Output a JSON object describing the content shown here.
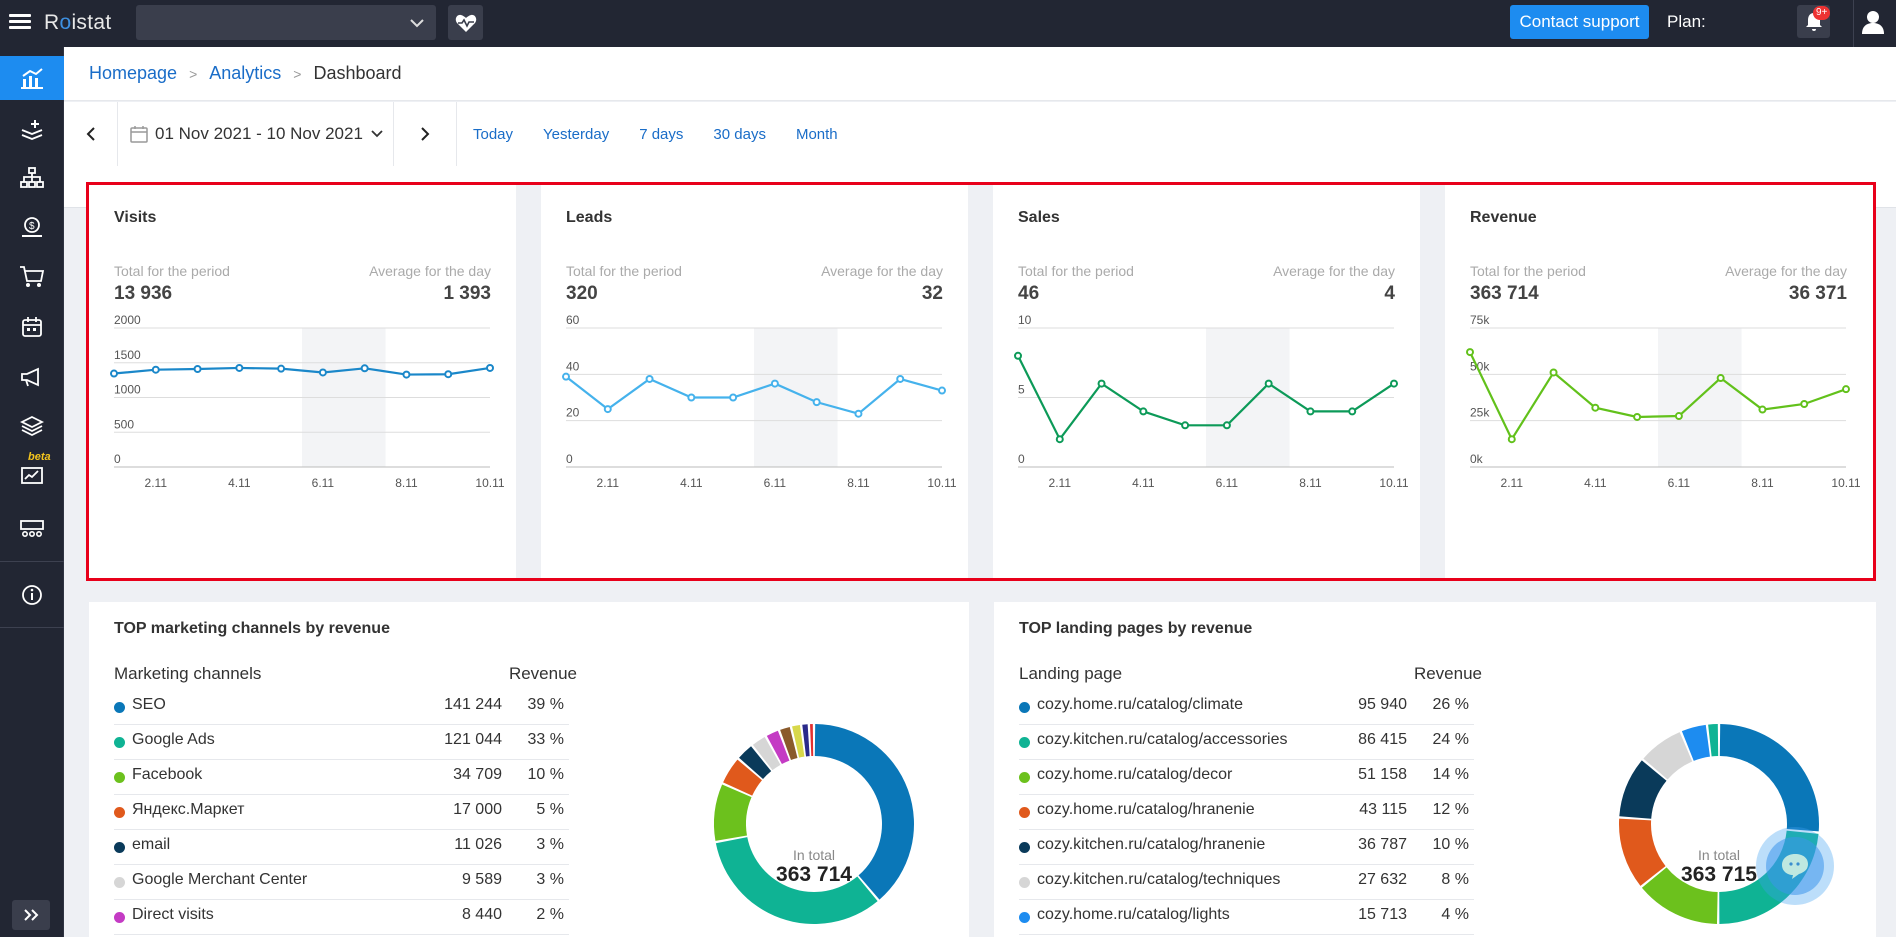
{
  "app": {
    "brand_prefix": "R",
    "brand_o": "o",
    "brand_suffix": "istat"
  },
  "topbar": {
    "project_select_value": "",
    "support_button": "Contact support",
    "plan_label": "Plan:",
    "notifications_badge": "9+"
  },
  "breadcrumbs": [
    "Homepage",
    "Analytics",
    "Dashboard"
  ],
  "datebar": {
    "range": "01 Nov 2021 - 10 Nov 2021",
    "presets": [
      "Today",
      "Yesterday",
      "7 days",
      "30 days",
      "Month"
    ]
  },
  "kpis": [
    {
      "title": "Visits",
      "total_label": "Total for the period",
      "avg_label": "Average for the day",
      "total": "13 936",
      "avg": "1 393",
      "color": "#1a87c9"
    },
    {
      "title": "Leads",
      "total_label": "Total for the period",
      "avg_label": "Average for the day",
      "total": "320",
      "avg": "32",
      "color": "#45b2ec"
    },
    {
      "title": "Sales",
      "total_label": "Total for the period",
      "avg_label": "Average for the day",
      "total": "46",
      "avg": "4",
      "color": "#0c9a58"
    },
    {
      "title": "Revenue",
      "total_label": "Total for the period",
      "avg_label": "Average for the day",
      "total": "363 714",
      "avg": "36 371",
      "color": "#62c11b"
    }
  ],
  "chart_data": [
    {
      "type": "line",
      "title": "Visits",
      "x": [
        "1.11",
        "2.11",
        "3.11",
        "4.11",
        "5.11",
        "6.11",
        "7.11",
        "8.11",
        "9.11",
        "10.11"
      ],
      "xticks": [
        "2.11",
        "4.11",
        "6.11",
        "8.11",
        "10.11"
      ],
      "yticks": [
        "0",
        "500",
        "1000",
        "1500",
        "2000"
      ],
      "ylim": [
        0,
        2000
      ],
      "values": [
        1345,
        1400,
        1410,
        1425,
        1415,
        1360,
        1420,
        1330,
        1335,
        1425
      ],
      "shaded": [
        "6.11",
        "7.11"
      ]
    },
    {
      "type": "line",
      "title": "Leads",
      "x": [
        "1.11",
        "2.11",
        "3.11",
        "4.11",
        "5.11",
        "6.11",
        "7.11",
        "8.11",
        "9.11",
        "10.11"
      ],
      "xticks": [
        "2.11",
        "4.11",
        "6.11",
        "8.11",
        "10.11"
      ],
      "yticks": [
        "0",
        "20",
        "40",
        "60"
      ],
      "ylim": [
        0,
        60
      ],
      "values": [
        39,
        25,
        38,
        30,
        30,
        36,
        28,
        23,
        38,
        33
      ],
      "shaded": [
        "6.11",
        "7.11"
      ]
    },
    {
      "type": "line",
      "title": "Sales",
      "x": [
        "1.11",
        "2.11",
        "3.11",
        "4.11",
        "5.11",
        "6.11",
        "7.11",
        "8.11",
        "9.11",
        "10.11"
      ],
      "xticks": [
        "2.11",
        "4.11",
        "6.11",
        "8.11",
        "10.11"
      ],
      "yticks": [
        "0",
        "5",
        "10"
      ],
      "ylim": [
        0,
        10
      ],
      "values": [
        8,
        2,
        6,
        4,
        3,
        3,
        6,
        4,
        4,
        6
      ],
      "shaded": [
        "6.11",
        "7.11"
      ]
    },
    {
      "type": "line",
      "title": "Revenue",
      "x": [
        "1.11",
        "2.11",
        "3.11",
        "4.11",
        "5.11",
        "6.11",
        "7.11",
        "8.11",
        "9.11",
        "10.11"
      ],
      "xticks": [
        "2.11",
        "4.11",
        "6.11",
        "8.11",
        "10.11"
      ],
      "yticks": [
        "0k",
        "25k",
        "50k",
        "75k"
      ],
      "ylim": [
        0,
        75000
      ],
      "values": [
        62000,
        15000,
        51000,
        32000,
        27000,
        27500,
        48000,
        31000,
        34000,
        42000
      ],
      "shaded": [
        "6.11",
        "7.11"
      ]
    },
    {
      "type": "pie",
      "title": "TOP marketing channels by revenue",
      "center_label": "In total",
      "center_value": "363 714",
      "values": [
        141244,
        121044,
        34709,
        17000,
        11026,
        9589,
        8440,
        7200,
        6000,
        4500,
        3000
      ],
      "colors": [
        "#0a77b8",
        "#0fb394",
        "#6cc11d",
        "#e0591c",
        "#0a3a5a",
        "#d6d6d6",
        "#c43bc4",
        "#8a5a2b",
        "#d8d84a",
        "#2a2a8a",
        "#e33030"
      ]
    },
    {
      "type": "pie",
      "title": "TOP landing pages by revenue",
      "center_label": "In total",
      "center_value": "363 715",
      "values": [
        95940,
        86415,
        51158,
        43115,
        36787,
        27632,
        15713,
        7000
      ],
      "colors": [
        "#0a77b8",
        "#0fb394",
        "#6cc11d",
        "#e0591c",
        "#0a3a5a",
        "#d6d6d6",
        "#1d8cf0",
        "#0fb394"
      ]
    }
  ],
  "channels": {
    "title": "TOP marketing channels by revenue",
    "col_name": "Marketing channels",
    "col_revenue": "Revenue",
    "rows": [
      {
        "name": "SEO",
        "revenue": "141 244",
        "pct": "39 %",
        "color": "#0a77b8"
      },
      {
        "name": "Google Ads",
        "revenue": "121 044",
        "pct": "33 %",
        "color": "#0fb394"
      },
      {
        "name": "Facebook",
        "revenue": "34 709",
        "pct": "10 %",
        "color": "#6cc11d"
      },
      {
        "name": "Яндекс.Маркет",
        "revenue": "17 000",
        "pct": "5 %",
        "color": "#e0591c"
      },
      {
        "name": "email",
        "revenue": "11 026",
        "pct": "3 %",
        "color": "#0a3a5a"
      },
      {
        "name": "Google Merchant Center",
        "revenue": "9 589",
        "pct": "3 %",
        "color": "#d6d6d6"
      },
      {
        "name": "Direct visits",
        "revenue": "8 440",
        "pct": "2 %",
        "color": "#c43bc4"
      }
    ]
  },
  "landings": {
    "title": "TOP landing pages by revenue",
    "col_name": "Landing page",
    "col_revenue": "Revenue",
    "rows": [
      {
        "name": "cozy.home.ru/catalog/climate",
        "revenue": "95 940",
        "pct": "26 %",
        "color": "#0a77b8"
      },
      {
        "name": "cozy.kitchen.ru/catalog/accessories",
        "revenue": "86 415",
        "pct": "24 %",
        "color": "#0fb394"
      },
      {
        "name": "cozy.home.ru/catalog/decor",
        "revenue": "51 158",
        "pct": "14 %",
        "color": "#6cc11d"
      },
      {
        "name": "cozy.home.ru/catalog/hranenie",
        "revenue": "43 115",
        "pct": "12 %",
        "color": "#e0591c"
      },
      {
        "name": "cozy.kitchen.ru/catalog/hranenie",
        "revenue": "36 787",
        "pct": "10 %",
        "color": "#0a3a5a"
      },
      {
        "name": "cozy.kitchen.ru/catalog/techniques",
        "revenue": "27 632",
        "pct": "8 %",
        "color": "#d6d6d6"
      },
      {
        "name": "cozy.home.ru/catalog/lights",
        "revenue": "15 713",
        "pct": "4 %",
        "color": "#1d8cf0"
      }
    ]
  },
  "sidebar": {
    "items": [
      "dashboard-icon",
      "leads-icon",
      "structure-icon",
      "money-icon",
      "cart-icon",
      "calendar-icon",
      "megaphone-icon",
      "layers-icon",
      "reports-beta-icon",
      "widgets-icon",
      "info-icon"
    ],
    "beta_label": "beta",
    "expand_icon": "expand-icon"
  }
}
